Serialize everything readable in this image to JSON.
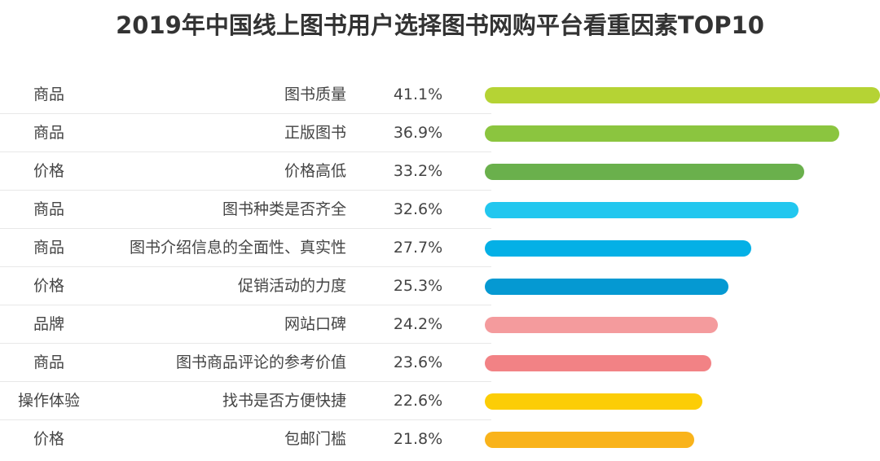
{
  "chart_data": {
    "type": "bar",
    "orientation": "horizontal",
    "title": "2019年中国线上图书用户选择图书网购平台看重因素TOP10",
    "rows": [
      {
        "category": "商品",
        "factor": "图书质量",
        "value": 41.1,
        "label": "41.1%",
        "color": "#b5d334"
      },
      {
        "category": "商品",
        "factor": "正版图书",
        "value": 36.9,
        "label": "36.9%",
        "color": "#8bc53f"
      },
      {
        "category": "价格",
        "factor": "价格高低",
        "value": 33.2,
        "label": "33.2%",
        "color": "#6ab04c"
      },
      {
        "category": "商品",
        "factor": "图书种类是否齐全",
        "value": 32.6,
        "label": "32.6%",
        "color": "#22c7ef"
      },
      {
        "category": "商品",
        "factor": "图书介绍信息的全面性、真实性",
        "value": 27.7,
        "label": "27.7%",
        "color": "#04b0e6"
      },
      {
        "category": "价格",
        "factor": "促销活动的力度",
        "value": 25.3,
        "label": "25.3%",
        "color": "#0599d2"
      },
      {
        "category": "品牌",
        "factor": "网站口碑",
        "value": 24.2,
        "label": "24.2%",
        "color": "#f49b9d"
      },
      {
        "category": "商品",
        "factor": "图书商品评论的参考价值",
        "value": 23.6,
        "label": "23.6%",
        "color": "#f28285"
      },
      {
        "category": "操作体验",
        "factor": "找书是否方便快捷",
        "value": 22.6,
        "label": "22.6%",
        "color": "#fccd06"
      },
      {
        "category": "价格",
        "factor": "包邮门槛",
        "value": 21.8,
        "label": "21.8%",
        "color": "#f9b31b"
      }
    ],
    "xlim": [
      0,
      41.1
    ],
    "grid": false,
    "legend": "none"
  }
}
